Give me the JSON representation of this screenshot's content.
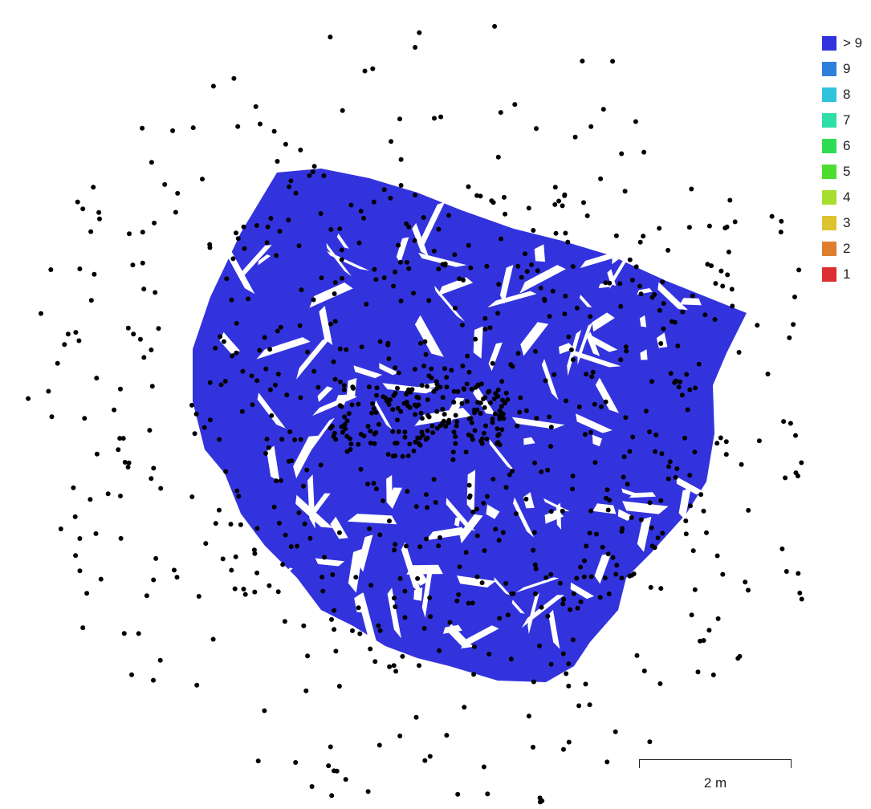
{
  "legend": {
    "items": [
      {
        "label": "> 9",
        "color": "#3333dd"
      },
      {
        "label": "9",
        "color": "#2f7fdd"
      },
      {
        "label": "8",
        "color": "#2fc3dd"
      },
      {
        "label": "7",
        "color": "#2fdda6"
      },
      {
        "label": "6",
        "color": "#2fdd55"
      },
      {
        "label": "5",
        "color": "#4ddd2f"
      },
      {
        "label": "4",
        "color": "#a6dd2f"
      },
      {
        "label": "3",
        "color": "#ddc32f"
      },
      {
        "label": "2",
        "color": "#dd7f2f"
      },
      {
        "label": "1",
        "color": "#dd2f2f"
      }
    ]
  },
  "scale": {
    "label": "2 m"
  },
  "colors": {
    "coverage": "#3333dd",
    "camera_point": "#000000"
  }
}
